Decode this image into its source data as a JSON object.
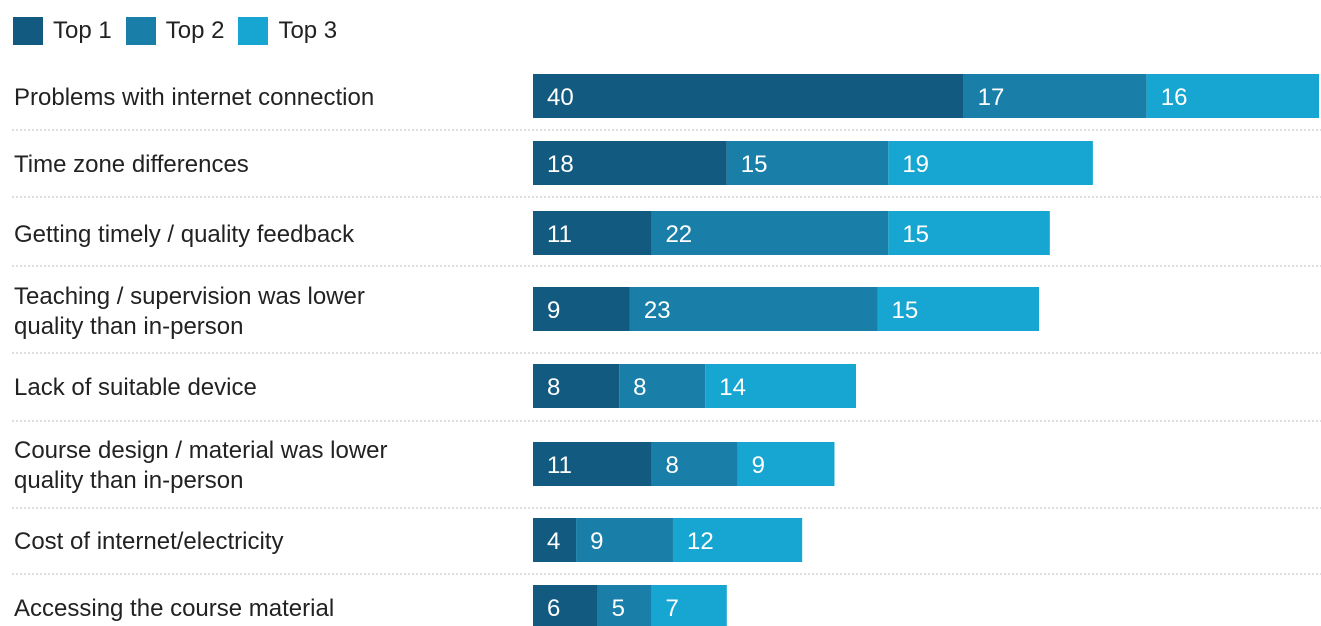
{
  "chart_data": {
    "type": "bar",
    "orientation": "horizontal",
    "stacked": true,
    "title": "",
    "xlabel": "",
    "ylabel": "",
    "xlim": [
      0,
      73
    ],
    "grid": false,
    "legend_placement": "top-left",
    "categories": [
      "Problems with internet connection",
      "Time zone differences",
      "Getting timely / quality feedback",
      "Teaching / supervision was lower quality than in-person",
      "Lack of suitable device",
      "Course design / material was lower quality than in-person",
      "Cost of internet/electricity",
      "Accessing the course material"
    ],
    "series": [
      {
        "name": "Top 1",
        "color": "#135a80",
        "values": [
          40,
          18,
          11,
          9,
          8,
          11,
          4,
          6
        ]
      },
      {
        "name": "Top 2",
        "color": "#1a7fa8",
        "values": [
          17,
          15,
          22,
          23,
          8,
          8,
          9,
          5
        ]
      },
      {
        "name": "Top 3",
        "color": "#17a6d1",
        "values": [
          16,
          19,
          15,
          15,
          14,
          9,
          12,
          7
        ]
      }
    ]
  }
}
